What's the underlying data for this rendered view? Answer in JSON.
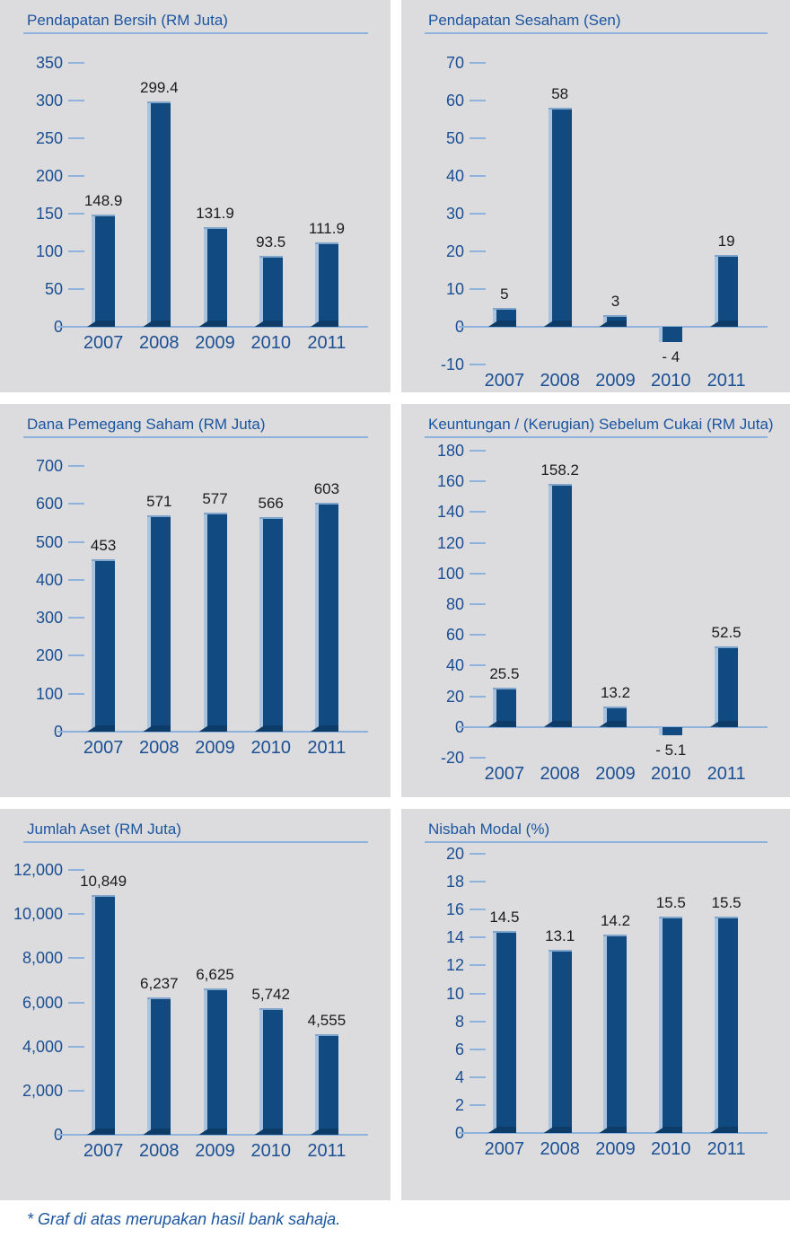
{
  "footer": {
    "note": "* Graf di atas merupakan hasil bank sahaja."
  },
  "colors": {
    "panel_bg": "#dcdcde",
    "bar": "#114a80",
    "bar_highlight": "#a9c3df",
    "bar_base": "#0d3c69",
    "axis_text": "#1b4f93",
    "title_text": "#1b55a0",
    "line": "#8fb2dc",
    "value_text": "#1b1b1b"
  },
  "chart_data": [
    {
      "type": "bar",
      "title": "Pendapatan Bersih (RM Juta)",
      "categories": [
        "2007",
        "2008",
        "2009",
        "2010",
        "2011"
      ],
      "values": [
        148.9,
        299.4,
        131.9,
        93.5,
        111.9
      ],
      "value_labels": [
        "148.9",
        "299.4",
        "131.9",
        "93.5",
        "111.9"
      ],
      "ylim": [
        0,
        350
      ],
      "ytick_step": 50,
      "grid": "tick-dashes-only",
      "legend": "none",
      "yticks": [
        {
          "v": 350,
          "label": "350"
        },
        {
          "v": 300,
          "label": "300"
        },
        {
          "v": 250,
          "label": "250"
        },
        {
          "v": 200,
          "label": "200"
        },
        {
          "v": 150,
          "label": "150"
        },
        {
          "v": 100,
          "label": "100"
        },
        {
          "v": 50,
          "label": "50"
        },
        {
          "v": 0,
          "label": "0"
        }
      ]
    },
    {
      "type": "bar",
      "title": "Pendapatan Sesaham (Sen)",
      "categories": [
        "2007",
        "2008",
        "2009",
        "2010",
        "2011"
      ],
      "values": [
        5,
        58,
        3,
        -4,
        19
      ],
      "value_labels": [
        "5",
        "58",
        "3",
        "- 4",
        "19"
      ],
      "ylim": [
        -10,
        70
      ],
      "ytick_step": 10,
      "grid": "tick-dashes-only",
      "legend": "none",
      "yticks": [
        {
          "v": 70,
          "label": "70"
        },
        {
          "v": 60,
          "label": "60"
        },
        {
          "v": 50,
          "label": "50"
        },
        {
          "v": 40,
          "label": "40"
        },
        {
          "v": 30,
          "label": "30"
        },
        {
          "v": 20,
          "label": "20"
        },
        {
          "v": 10,
          "label": "10"
        },
        {
          "v": 0,
          "label": "0"
        },
        {
          "v": -10,
          "label": "-10"
        }
      ]
    },
    {
      "type": "bar",
      "title": "Dana Pemegang Saham (RM Juta)",
      "categories": [
        "2007",
        "2008",
        "2009",
        "2010",
        "2011"
      ],
      "values": [
        453,
        571,
        577,
        566,
        603
      ],
      "value_labels": [
        "453",
        "571",
        "577",
        "566",
        "603"
      ],
      "ylim": [
        0,
        700
      ],
      "ytick_step": 100,
      "grid": "tick-dashes-only",
      "legend": "none",
      "yticks": [
        {
          "v": 700,
          "label": "700"
        },
        {
          "v": 600,
          "label": "600"
        },
        {
          "v": 500,
          "label": "500"
        },
        {
          "v": 400,
          "label": "400"
        },
        {
          "v": 300,
          "label": "300"
        },
        {
          "v": 200,
          "label": "200"
        },
        {
          "v": 100,
          "label": "100"
        },
        {
          "v": 0,
          "label": "0"
        }
      ]
    },
    {
      "type": "bar",
      "title": "Keuntungan / (Kerugian) Sebelum Cukai (RM Juta)",
      "categories": [
        "2007",
        "2008",
        "2009",
        "2010",
        "2011"
      ],
      "values": [
        25.5,
        158.2,
        13.2,
        -5.1,
        52.5
      ],
      "value_labels": [
        "25.5",
        "158.2",
        "13.2",
        "- 5.1",
        "52.5"
      ],
      "ylim": [
        -20,
        180
      ],
      "ytick_step": 20,
      "grid": "tick-dashes-only",
      "legend": "none",
      "yticks": [
        {
          "v": 180,
          "label": "180"
        },
        {
          "v": 160,
          "label": "160"
        },
        {
          "v": 140,
          "label": "140"
        },
        {
          "v": 120,
          "label": "120"
        },
        {
          "v": 100,
          "label": "100"
        },
        {
          "v": 80,
          "label": "80"
        },
        {
          "v": 60,
          "label": "60"
        },
        {
          "v": 40,
          "label": "40"
        },
        {
          "v": 20,
          "label": "20"
        },
        {
          "v": 0,
          "label": "0"
        },
        {
          "v": -20,
          "label": "-20"
        }
      ]
    },
    {
      "type": "bar",
      "title": "Jumlah Aset (RM Juta)",
      "categories": [
        "2007",
        "2008",
        "2009",
        "2010",
        "2011"
      ],
      "values": [
        10849,
        6237,
        6625,
        5742,
        4555
      ],
      "value_labels": [
        "10,849",
        "6,237",
        "6,625",
        "5,742",
        "4,555"
      ],
      "ylim": [
        0,
        12000
      ],
      "ytick_step": 2000,
      "grid": "tick-dashes-only",
      "legend": "none",
      "yticks": [
        {
          "v": 12000,
          "label": "12,000"
        },
        {
          "v": 10000,
          "label": "10,000"
        },
        {
          "v": 8000,
          "label": "8,000"
        },
        {
          "v": 6000,
          "label": "6,000"
        },
        {
          "v": 4000,
          "label": "4,000"
        },
        {
          "v": 2000,
          "label": "2,000"
        },
        {
          "v": 0,
          "label": "0"
        }
      ]
    },
    {
      "type": "bar",
      "title": "Nisbah Modal (%)",
      "categories": [
        "2007",
        "2008",
        "2009",
        "2010",
        "2011"
      ],
      "values": [
        14.5,
        13.1,
        14.2,
        15.5,
        15.5
      ],
      "value_labels": [
        "14.5",
        "13.1",
        "14.2",
        "15.5",
        "15.5"
      ],
      "ylim": [
        0,
        20
      ],
      "ytick_step": 2,
      "grid": "tick-dashes-only",
      "legend": "none",
      "yticks": [
        {
          "v": 20,
          "label": "20"
        },
        {
          "v": 18,
          "label": "18"
        },
        {
          "v": 16,
          "label": "16"
        },
        {
          "v": 14,
          "label": "14"
        },
        {
          "v": 12,
          "label": "12"
        },
        {
          "v": 10,
          "label": "10"
        },
        {
          "v": 8,
          "label": "8"
        },
        {
          "v": 6,
          "label": "6"
        },
        {
          "v": 4,
          "label": "4"
        },
        {
          "v": 2,
          "label": "2"
        },
        {
          "v": 0,
          "label": "0"
        }
      ]
    }
  ]
}
